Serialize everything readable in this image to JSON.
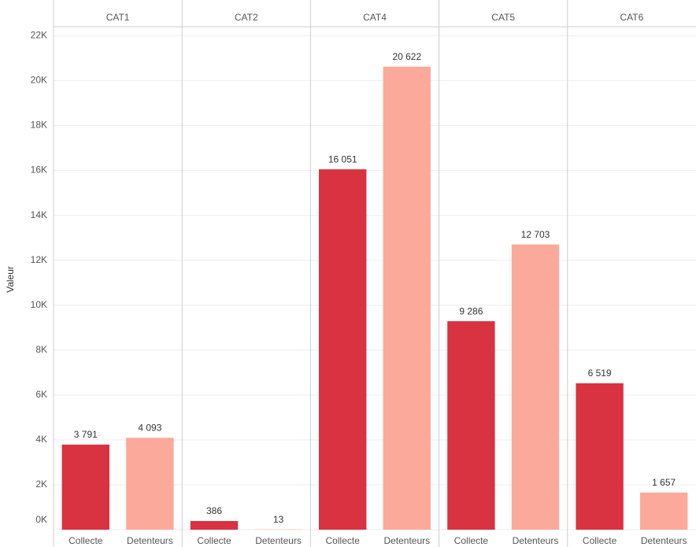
{
  "chart_data": {
    "type": "bar",
    "y_label": "Valeur",
    "categories": [
      "CAT1",
      "CAT2",
      "CAT4",
      "CAT5",
      "CAT6"
    ],
    "series": [
      {
        "name": "Collecte",
        "color": "#d93240",
        "values": [
          3791,
          386,
          16051,
          9286,
          6519
        ],
        "value_labels": [
          "3 791",
          "386",
          "16 051",
          "9 286",
          "6 519"
        ]
      },
      {
        "name": "Detenteurs",
        "color": "#fba99a",
        "values": [
          4093,
          13,
          20622,
          12703,
          1657
        ],
        "value_labels": [
          "4 093",
          "13",
          "20 622",
          "12 703",
          "1 657"
        ]
      }
    ],
    "ylim": [
      0,
      22400
    ],
    "yticks": [
      {
        "value": 0,
        "label": "0K"
      },
      {
        "value": 2000,
        "label": "2K"
      },
      {
        "value": 4000,
        "label": "4K"
      },
      {
        "value": 6000,
        "label": "6K"
      },
      {
        "value": 8000,
        "label": "8K"
      },
      {
        "value": 10000,
        "label": "10K"
      },
      {
        "value": 12000,
        "label": "12K"
      },
      {
        "value": 14000,
        "label": "14K"
      },
      {
        "value": 16000,
        "label": "16K"
      },
      {
        "value": 18000,
        "label": "18K"
      },
      {
        "value": 20000,
        "label": "20K"
      },
      {
        "value": 22000,
        "label": "22K"
      }
    ],
    "grid": true
  }
}
